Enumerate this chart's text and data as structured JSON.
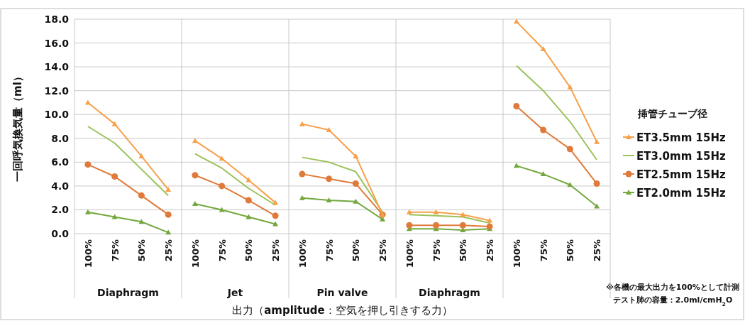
{
  "chart_data": [
    {
      "type": "line",
      "xlabel": "Diaphragm",
      "ylabel": "一回呼気換気量（ml）",
      "categories": [
        "100%",
        "75%",
        "50%",
        "25%"
      ],
      "ylim": [
        0,
        18
      ],
      "yticks": [
        {
          "value": 0,
          "label": "0.0"
        },
        {
          "value": 2,
          "label": "2.0"
        },
        {
          "value": 4,
          "label": "4.0"
        },
        {
          "value": 6,
          "label": "6.0"
        },
        {
          "value": 8,
          "label": "8.0"
        },
        {
          "value": 10,
          "label": "10.0"
        },
        {
          "value": 12,
          "label": "12.0"
        },
        {
          "value": 14,
          "label": "14.0"
        },
        {
          "value": 16,
          "label": "16.0"
        },
        {
          "value": 18,
          "label": "18.0"
        }
      ],
      "grid": "y",
      "series": [
        {
          "color": "#f7a04a",
          "marker": "triangle",
          "values": [
            11.0,
            9.2,
            6.5,
            3.7
          ]
        },
        {
          "color": "#9bc25a",
          "marker": "none",
          "values": [
            9.0,
            7.6,
            5.4,
            3.2
          ]
        },
        {
          "color": "#e07a3a",
          "marker": "circle",
          "values": [
            5.8,
            4.8,
            3.2,
            1.6
          ]
        },
        {
          "color": "#74a83e",
          "marker": "triangle",
          "values": [
            1.8,
            1.4,
            1.0,
            0.1
          ]
        }
      ]
    },
    {
      "type": "line",
      "xlabel": "Jet",
      "categories": [
        "100%",
        "75%",
        "50%",
        "25%"
      ],
      "ylim": [
        0,
        18
      ],
      "yticks": [
        0,
        2,
        4,
        6,
        8,
        10,
        12,
        14,
        16,
        18
      ],
      "grid": "y",
      "tick_labels": "x",
      "series": [
        {
          "color": "#f7a04a",
          "marker": "triangle",
          "values": [
            7.8,
            6.3,
            4.5,
            2.6
          ]
        },
        {
          "color": "#9bc25a",
          "marker": "none",
          "values": [
            6.7,
            5.5,
            3.8,
            2.4
          ]
        },
        {
          "color": "#e07a3a",
          "marker": "circle",
          "values": [
            4.9,
            4.0,
            2.8,
            1.5
          ]
        },
        {
          "color": "#74a83e",
          "marker": "triangle",
          "values": [
            2.5,
            2.0,
            1.4,
            0.8
          ]
        }
      ]
    },
    {
      "type": "line",
      "xlabel": "Pin valve",
      "annotations": [
        "出力（**amplitude**：空気を押し引きする力）"
      ],
      "categories": [
        "100%",
        "75%",
        "50%",
        "25%"
      ],
      "ylim": [
        0,
        18
      ],
      "yticks": [
        0,
        2,
        4,
        6,
        8,
        10,
        12,
        14,
        16,
        18
      ],
      "grid": "y",
      "tick_labels": "x",
      "series": [
        {
          "color": "#f7a04a",
          "marker": "triangle",
          "values": [
            9.2,
            8.7,
            6.5,
            1.6
          ]
        },
        {
          "color": "#9bc25a",
          "marker": "none",
          "values": [
            6.4,
            6.0,
            5.2,
            1.8
          ]
        },
        {
          "color": "#e07a3a",
          "marker": "circle",
          "values": [
            5.0,
            4.6,
            4.2,
            1.6
          ]
        },
        {
          "color": "#74a83e",
          "marker": "triangle",
          "values": [
            3.0,
            2.8,
            2.7,
            1.2
          ]
        }
      ]
    },
    {
      "type": "line",
      "xlabel": "Diaphragm",
      "categories": [
        "100%",
        "75%",
        "50%",
        "25%"
      ],
      "ylim": [
        0,
        18
      ],
      "yticks": [
        0,
        2,
        4,
        6,
        8,
        10,
        12,
        14,
        16,
        18
      ],
      "grid": "y",
      "tick_labels": "x",
      "series": [
        {
          "color": "#f7a04a",
          "marker": "triangle",
          "values": [
            1.8,
            1.8,
            1.6,
            1.1
          ]
        },
        {
          "color": "#9bc25a",
          "marker": "none",
          "values": [
            1.6,
            1.5,
            1.4,
            0.9
          ]
        },
        {
          "color": "#e07a3a",
          "marker": "circle",
          "values": [
            0.7,
            0.7,
            0.7,
            0.6
          ]
        },
        {
          "color": "#74a83e",
          "marker": "triangle",
          "values": [
            0.4,
            0.4,
            0.3,
            0.4
          ]
        }
      ]
    },
    {
      "type": "line",
      "legend_title": "挿管チューブ径",
      "legend": "right",
      "annotations": [
        "※各機の最大出力を100%として計測",
        "テスト肺の容量：2.0ml/cmH$_{2}$O"
      ],
      "categories": [
        "100%",
        "75%",
        "50%",
        "25%"
      ],
      "ylim": [
        0,
        18
      ],
      "yticks": [
        0,
        2,
        4,
        6,
        8,
        10,
        12,
        14,
        16,
        18
      ],
      "grid": "y",
      "tick_labels": "x",
      "series": [
        {
          "name": "ET3.5mm 15Hz",
          "color": "#f7a04a",
          "marker": "triangle",
          "values": [
            17.8,
            15.5,
            12.3,
            7.7
          ]
        },
        {
          "name": "ET3.0mm 15Hz",
          "color": "#9bc25a",
          "marker": "none",
          "values": [
            14.1,
            12.0,
            9.4,
            6.2
          ]
        },
        {
          "name": "ET2.5mm 15Hz",
          "color": "#e07a3a",
          "marker": "circle",
          "values": [
            10.7,
            8.7,
            7.1,
            4.2
          ]
        },
        {
          "name": "ET2.0mm 15Hz",
          "color": "#74a83e",
          "marker": "triangle",
          "values": [
            5.7,
            5.0,
            4.1,
            2.3
          ]
        }
      ]
    }
  ]
}
